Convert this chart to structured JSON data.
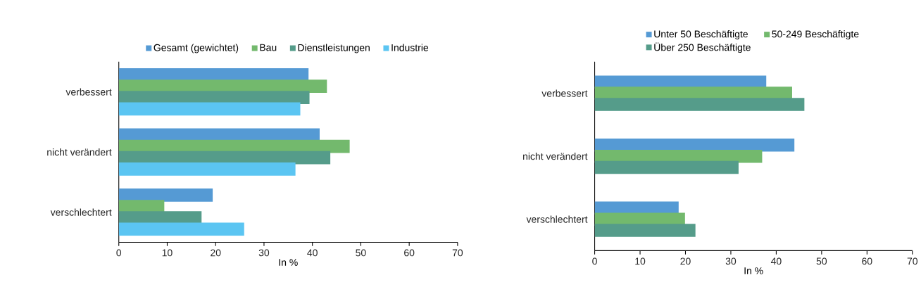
{
  "chart_data": [
    {
      "type": "bar",
      "orientation": "horizontal",
      "categories": [
        "verbessert",
        "nicht verändert",
        "verschlechtert"
      ],
      "xlabel": "In %",
      "xlim": [
        0,
        70
      ],
      "xticks": [
        0,
        10,
        20,
        30,
        40,
        50,
        60,
        70
      ],
      "legend": "top",
      "grid": false,
      "series": [
        {
          "name": "Gesamt (gewichtet)",
          "color": "#559ad4",
          "values": [
            39.2,
            41.5,
            19.4
          ]
        },
        {
          "name": "Bau",
          "color": "#73b96d",
          "values": [
            43.0,
            47.7,
            9.4
          ]
        },
        {
          "name": "Dienstleistungen",
          "color": "#559c8a",
          "values": [
            39.4,
            43.7,
            17.1
          ]
        },
        {
          "name": "Industrie",
          "color": "#5bc5f2",
          "values": [
            37.5,
            36.5,
            25.9
          ]
        }
      ]
    },
    {
      "type": "bar",
      "orientation": "horizontal",
      "categories": [
        "verbessert",
        "nicht verändert",
        "verschlechtert"
      ],
      "xlabel": "In %",
      "xlim": [
        0,
        70
      ],
      "xticks": [
        0,
        10,
        20,
        30,
        40,
        50,
        60,
        70
      ],
      "legend": "top",
      "grid": false,
      "series": [
        {
          "name": "Unter 50 Beschäftigte",
          "color": "#559ad4",
          "values": [
            37.8,
            44.0,
            18.5
          ]
        },
        {
          "name": "50-249 Beschäftigte",
          "color": "#73b96d",
          "values": [
            43.5,
            36.9,
            19.9
          ]
        },
        {
          "name": "Über 250 Beschäftigte",
          "color": "#559c8a",
          "values": [
            46.2,
            31.7,
            22.2
          ]
        }
      ]
    }
  ]
}
